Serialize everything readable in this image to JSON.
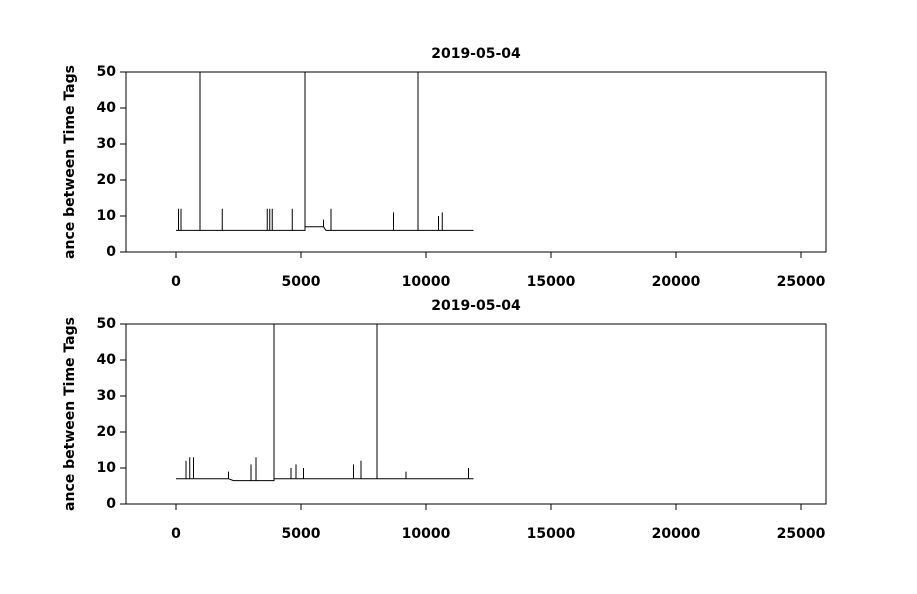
{
  "chart_data": [
    {
      "type": "line",
      "title": "2019-05-04",
      "ylabel": "ance between Time Tags",
      "color": "#000000",
      "x": [
        0,
        100,
        100,
        100,
        200,
        200,
        200,
        960,
        960,
        960,
        1850,
        1850,
        1850,
        3650,
        3650,
        3650,
        3750,
        3750,
        3750,
        3850,
        3850,
        3850,
        4650,
        4650,
        4650,
        5160,
        5160,
        5160,
        5200,
        5800,
        5900,
        5900,
        5900,
        6000,
        6200,
        6200,
        6200,
        8700,
        8700,
        8700,
        9680,
        9680,
        9680,
        10500,
        10500,
        10500,
        10650,
        10650,
        10650,
        11900
      ],
      "values": [
        6,
        6,
        12,
        6,
        6,
        12,
        6,
        6,
        50,
        6,
        6,
        12,
        6,
        6,
        12,
        6,
        6,
        12,
        6,
        6,
        12,
        6,
        6,
        12,
        6,
        6,
        50,
        7,
        7,
        7,
        7,
        9,
        7,
        6,
        6,
        12,
        6,
        6,
        11,
        6,
        6,
        50,
        6,
        6,
        10,
        6,
        6,
        11,
        6,
        6
      ],
      "xlim": [
        -2000,
        26000
      ],
      "ylim": [
        0,
        50
      ],
      "xticks": [
        0,
        5000,
        10000,
        15000,
        20000,
        25000
      ],
      "yticks": [
        0,
        10,
        20,
        30,
        40,
        50
      ]
    },
    {
      "type": "line",
      "title": "2019-05-04",
      "ylabel": "ance between Time Tags",
      "color": "#000000",
      "x": [
        0,
        400,
        400,
        400,
        550,
        550,
        550,
        700,
        700,
        700,
        2100,
        2100,
        2100,
        2300,
        3000,
        3000,
        3000,
        3200,
        3200,
        3200,
        3920,
        3920,
        3920,
        4600,
        4600,
        4600,
        4800,
        4800,
        4800,
        5100,
        5100,
        5100,
        7100,
        7100,
        7100,
        7400,
        7400,
        7400,
        8040,
        8040,
        8040,
        9200,
        9200,
        9200,
        10500,
        11700,
        11700,
        11700,
        11900
      ],
      "values": [
        7,
        7,
        12,
        7,
        7,
        13,
        7,
        7,
        13,
        7,
        7,
        9,
        7,
        6.5,
        6.5,
        11,
        6.5,
        6.5,
        13,
        6.5,
        6.5,
        50,
        7,
        7,
        10,
        7,
        7,
        11,
        7,
        7,
        10,
        7,
        7,
        11,
        7,
        7,
        12,
        7,
        7,
        50,
        7,
        7,
        9,
        7,
        7,
        7,
        10,
        7,
        7
      ],
      "xlim": [
        -2000,
        26000
      ],
      "ylim": [
        0,
        50
      ],
      "xticks": [
        0,
        5000,
        10000,
        15000,
        20000,
        25000
      ],
      "yticks": [
        0,
        10,
        20,
        30,
        40,
        50
      ]
    }
  ]
}
